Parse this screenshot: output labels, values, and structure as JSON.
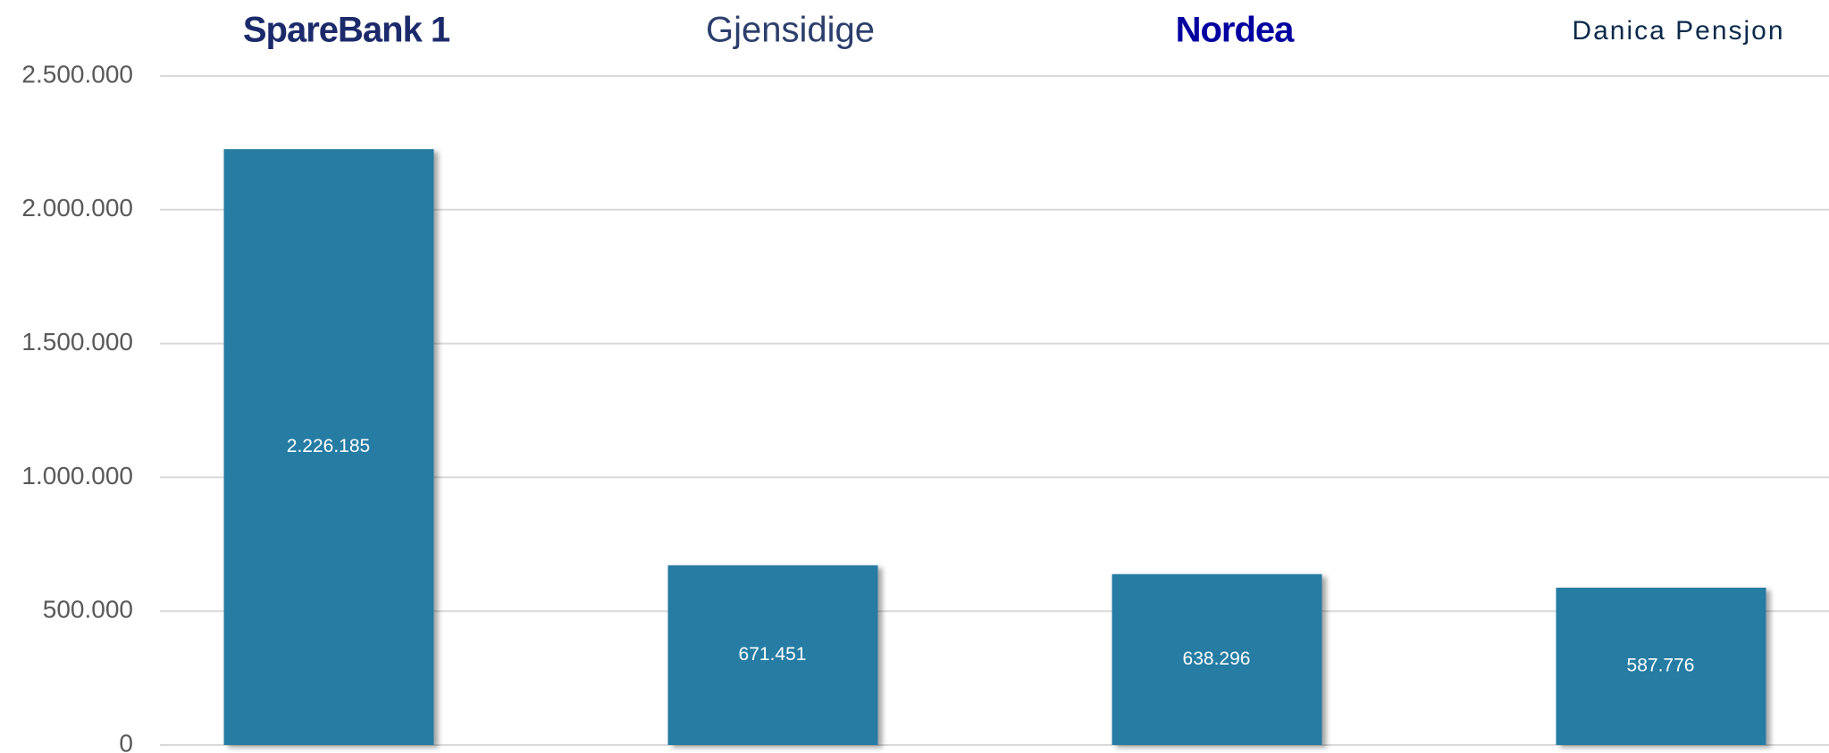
{
  "chart_data": {
    "type": "bar",
    "categories": [
      "SpareBank 1",
      "Gjensidige",
      "Nordea",
      "Danica Pensjon"
    ],
    "values": [
      2226185,
      671451,
      638296,
      587776
    ],
    "value_labels": [
      "2.226.185",
      "671.451",
      "638.296",
      "587.776"
    ],
    "color": "#287ca3",
    "ylim": [
      0,
      2500000
    ],
    "yticks": [
      0,
      {
        "value": 500000,
        "label": "500.000"
      },
      {
        "value": 1000000,
        "label": "1.000.000"
      },
      {
        "value": 1500000,
        "label": "1.500.000"
      },
      {
        "value": 2000000,
        "label": "2.000.000"
      },
      {
        "value": 2500000,
        "label": "2.500.000"
      }
    ],
    "grid": true
  }
}
